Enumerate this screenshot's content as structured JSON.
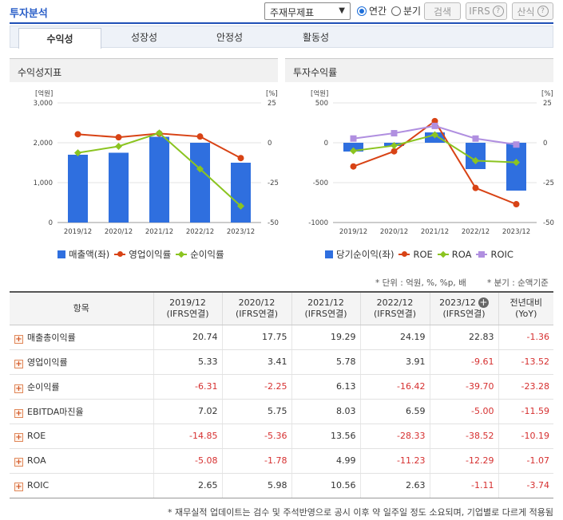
{
  "header": {
    "title": "투자분석",
    "select_value": "주재무제표",
    "radio_annual": "연간",
    "radio_quarter": "분기",
    "search_btn": "검색",
    "ifrs_btn": "IFRS",
    "formula_btn": "산식"
  },
  "tabs": [
    "수익성",
    "성장성",
    "안정성",
    "활동성"
  ],
  "left_panel": {
    "title": "수익성지표"
  },
  "right_panel": {
    "title": "투자수익률"
  },
  "chart_data": [
    {
      "type": "bar",
      "title": "수익성지표",
      "categories": [
        "2019/12",
        "2020/12",
        "2021/12",
        "2022/12",
        "2023/12"
      ],
      "left_axis": {
        "label": "[억원]",
        "ticks": [
          "3,000",
          "2,000",
          "1,000",
          "0"
        ],
        "ylim": [
          0,
          3000
        ]
      },
      "right_axis": {
        "label": "[%]",
        "ticks": [
          "25",
          "0",
          "-25",
          "-50"
        ],
        "ylim": [
          -50,
          25
        ]
      },
      "series": [
        {
          "name": "매출액(좌)",
          "kind": "bar",
          "axis": "left",
          "color": "#2f6fdf",
          "values": [
            1700,
            1750,
            2150,
            2000,
            1500
          ]
        },
        {
          "name": "영업이익률",
          "kind": "line",
          "axis": "right",
          "color": "#d84315",
          "marker": "circle",
          "values": [
            5.33,
            3.41,
            5.78,
            3.91,
            -9.61
          ]
        },
        {
          "name": "순이익률",
          "kind": "line",
          "axis": "right",
          "color": "#8bc420",
          "marker": "diamond",
          "values": [
            -6.31,
            -2.25,
            6.13,
            -16.42,
            -39.7
          ]
        }
      ]
    },
    {
      "type": "bar",
      "title": "투자수익률",
      "categories": [
        "2019/12",
        "2020/12",
        "2021/12",
        "2022/12",
        "2023/12"
      ],
      "left_axis": {
        "label": "[억원]",
        "ticks": [
          "500",
          "0",
          "-500",
          "-1000"
        ],
        "ylim": [
          -1000,
          500
        ]
      },
      "right_axis": {
        "label": "[%]",
        "ticks": [
          "25",
          "0",
          "-25",
          "-50"
        ],
        "ylim": [
          -50,
          25
        ]
      },
      "series": [
        {
          "name": "당기순이익(좌)",
          "kind": "bar",
          "axis": "left",
          "color": "#2f6fdf",
          "values": [
            -110,
            -40,
            130,
            -330,
            -600
          ]
        },
        {
          "name": "ROE",
          "kind": "line",
          "axis": "right",
          "color": "#d84315",
          "marker": "circle",
          "values": [
            -14.85,
            -5.36,
            13.56,
            -28.33,
            -38.52
          ]
        },
        {
          "name": "ROA",
          "kind": "line",
          "axis": "right",
          "color": "#8bc420",
          "marker": "diamond",
          "values": [
            -5.08,
            -1.78,
            4.99,
            -11.23,
            -12.29
          ]
        },
        {
          "name": "ROIC",
          "kind": "line",
          "axis": "right",
          "color": "#b08fe0",
          "marker": "square",
          "values": [
            2.65,
            5.98,
            10.56,
            2.63,
            -1.11
          ]
        }
      ]
    }
  ],
  "notes": {
    "unit": "* 단위 : 억원, %, %p, 배",
    "quarter": "* 분기 : 순액기준"
  },
  "table": {
    "headers": [
      {
        "line1": "항목",
        "line2": ""
      },
      {
        "line1": "2019/12",
        "line2": "(IFRS연결)"
      },
      {
        "line1": "2020/12",
        "line2": "(IFRS연결)"
      },
      {
        "line1": "2021/12",
        "line2": "(IFRS연결)"
      },
      {
        "line1": "2022/12",
        "line2": "(IFRS연결)"
      },
      {
        "line1": "2023/12",
        "line2": "(IFRS연결)"
      },
      {
        "line1": "전년대비",
        "line2": "(YoY)"
      }
    ],
    "rows": [
      {
        "label": "매출총이익률",
        "values": [
          "20.74",
          "17.75",
          "19.29",
          "24.19",
          "22.83",
          "-1.36"
        ]
      },
      {
        "label": "영업이익률",
        "values": [
          "5.33",
          "3.41",
          "5.78",
          "3.91",
          "-9.61",
          "-13.52"
        ]
      },
      {
        "label": "순이익률",
        "values": [
          "-6.31",
          "-2.25",
          "6.13",
          "-16.42",
          "-39.70",
          "-23.28"
        ]
      },
      {
        "label": "EBITDA마진율",
        "values": [
          "7.02",
          "5.75",
          "8.03",
          "6.59",
          "-5.00",
          "-11.59"
        ]
      },
      {
        "label": "ROE",
        "values": [
          "-14.85",
          "-5.36",
          "13.56",
          "-28.33",
          "-38.52",
          "-10.19"
        ]
      },
      {
        "label": "ROA",
        "values": [
          "-5.08",
          "-1.78",
          "4.99",
          "-11.23",
          "-12.29",
          "-1.07"
        ]
      },
      {
        "label": "ROIC",
        "values": [
          "2.65",
          "5.98",
          "10.56",
          "2.63",
          "-1.11",
          "-3.74"
        ]
      }
    ]
  },
  "footnote": "* 재무실적 업데이트는 검수 및 주석반영으로 공시 이후 약 일주일 정도 소요되며, 기업별로 다르게 적용됨"
}
